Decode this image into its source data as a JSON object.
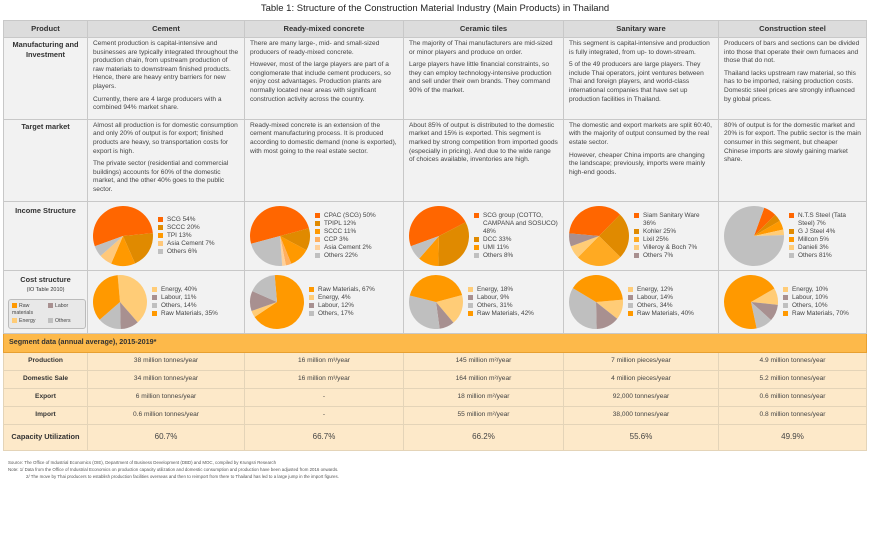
{
  "title": "Table 1: Structure of the Construction Material Industry (Main Products) in Thailand",
  "row_labels": {
    "product": "Product",
    "manufacturing": "Manufacturing and Investment",
    "target": "Target market",
    "income": "Income Structure",
    "cost": "Cost structure",
    "cost_sub": "(IO Table 2010)",
    "segment_header": "Segment data (annual average), 2015-2019*",
    "production": "Production",
    "domestic": "Domestic Sale",
    "export": "Export",
    "import": "Import",
    "capacity": "Capacity Utilization"
  },
  "legend": [
    {
      "label": "Raw materials",
      "color": "#ff9900"
    },
    {
      "label": "Labor",
      "color": "#a89090"
    },
    {
      "label": "Energy",
      "color": "#ffcc77"
    },
    {
      "label": "Others",
      "color": "#bfbfbf"
    }
  ],
  "products": [
    {
      "name": "Cement",
      "manufacturing": [
        "Cement production is capital-intensive and businesses are typically integrated throughout the production chain, from upstream production of raw materials to downstream finished products. Hence, there are heavy entry barriers for new players.",
        "Currently, there are 4 large producers with a combined 94% market share."
      ],
      "target": [
        "Almost all production is for domestic consumption and only 20% of output is for export; finished products are heavy, so transportation costs for export is high.",
        "The private sector (residential and commercial buildings) accounts for 60% of the domestic market, and the other 40% goes to the public sector."
      ],
      "income": [
        {
          "label": "SCG 54%",
          "value": 54,
          "color": "#ff6600"
        },
        {
          "label": "SCCC 20%",
          "value": 20,
          "color": "#e08a00"
        },
        {
          "label": "TPI 13%",
          "value": 13,
          "color": "#ff9900"
        },
        {
          "label": "Asia Cement 7%",
          "value": 7,
          "color": "#ffc87a"
        },
        {
          "label": "Others 6%",
          "value": 6,
          "color": "#c0c0c0"
        }
      ],
      "cost": [
        {
          "label": "Energy, 40%",
          "value": 40,
          "color": "#ffcc77"
        },
        {
          "label": "Labour, 11%",
          "value": 11,
          "color": "#a89090"
        },
        {
          "label": "Others, 14%",
          "value": 14,
          "color": "#bfbfbf"
        },
        {
          "label": "Raw Materials, 35%",
          "value": 35,
          "color": "#ff9900"
        }
      ],
      "production": "38 million tonnes/year",
      "domestic": "34 million tonnes/year",
      "export": "6 million tonnes/year",
      "import": "0.6 million tonnes/year",
      "capacity": "60.7%"
    },
    {
      "name": "Ready-mixed concrete",
      "manufacturing": [
        "There are many large-, mid- and small-sized producers of ready-mixed concrete.",
        "However, most of the large players are part of a conglomerate that include cement producers, so enjoy cost advantages. Production plants are normally located near areas with significant construction activity across the country."
      ],
      "target": [
        "Ready-mixed concrete is an extension of the cement manufacturing process. It is produced according to domestic demand (none is exported), with most going to the real estate sector."
      ],
      "income": [
        {
          "label": "CPAC (SCG) 50%",
          "value": 50,
          "color": "#ff6600"
        },
        {
          "label": "TPIPL 12%",
          "value": 12,
          "color": "#e08a00"
        },
        {
          "label": "SCCC 11%",
          "value": 11,
          "color": "#ff9900"
        },
        {
          "label": "CCP 3%",
          "value": 3,
          "color": "#ffb060"
        },
        {
          "label": "Asia Cement 2%",
          "value": 2,
          "color": "#ffd099"
        },
        {
          "label": "Others 22%",
          "value": 22,
          "color": "#c0c0c0"
        }
      ],
      "cost": [
        {
          "label": "Raw Materials, 67%",
          "value": 67,
          "color": "#ff9900"
        },
        {
          "label": "Energy, 4%",
          "value": 4,
          "color": "#ffcc77"
        },
        {
          "label": "Labour, 12%",
          "value": 12,
          "color": "#a89090"
        },
        {
          "label": "Others, 17%",
          "value": 17,
          "color": "#bfbfbf"
        }
      ],
      "production": "16 million m³/year",
      "domestic": "16 million m³/year",
      "export": "-",
      "import": "-",
      "capacity": "66.7%"
    },
    {
      "name": "Ceramic tiles",
      "manufacturing": [
        "The majority of Thai manufacturers are mid-sized or minor players and produce on order.",
        "Large players have little financial constraints, so they can employ technology-intensive production and sell under their own brands. They command 90% of the market."
      ],
      "target": [
        "About 85% of output is distributed to the domestic market and 15% is exported. This segment is marked by strong competition from imported goods (especially in pricing). And due to the wide range of choices available, inventories are high."
      ],
      "income": [
        {
          "label": "SCG group (COTTO, CAMPANA and SOSUCO) 48%",
          "value": 48,
          "color": "#ff6600"
        },
        {
          "label": "DCC 33%",
          "value": 33,
          "color": "#e08a00"
        },
        {
          "label": "UMI 11%",
          "value": 11,
          "color": "#ff9900"
        },
        {
          "label": "Others 8%",
          "value": 8,
          "color": "#c0c0c0"
        }
      ],
      "cost": [
        {
          "label": "Energy, 18%",
          "value": 18,
          "color": "#ffcc77"
        },
        {
          "label": "Labour, 9%",
          "value": 9,
          "color": "#a89090"
        },
        {
          "label": "Others, 31%",
          "value": 31,
          "color": "#bfbfbf"
        },
        {
          "label": "Raw Materials, 42%",
          "value": 42,
          "color": "#ff9900"
        }
      ],
      "production": "145 million m²/year",
      "domestic": "164 million m²/year",
      "export": "18 million m²/year",
      "import": "55 million m²/year",
      "capacity": "66.2%"
    },
    {
      "name": "Sanitary ware",
      "manufacturing": [
        "This segment is capital-intensive and production is fully integrated, from up- to down-stream.",
        "5 of the 49 producers are large players. They include Thai operators, joint ventures between Thai and foreign players, and world-class international companies that have set up production facilities in Thailand."
      ],
      "target": [
        "The domestic and export markets are split 60:40, with the majority of output consumed by the real estate sector.",
        "However, cheaper China imports are changing the landscape; previously, imports were mainly high-end goods."
      ],
      "income": [
        {
          "label": "Siam Sanitary Ware 36%",
          "value": 36,
          "color": "#ff6600"
        },
        {
          "label": "Kohler 25%",
          "value": 25,
          "color": "#e08a00"
        },
        {
          "label": "Lixil 25%",
          "value": 25,
          "color": "#ffaa22"
        },
        {
          "label": "Villeroy & Boch 7%",
          "value": 7,
          "color": "#ffcc77"
        },
        {
          "label": "Others 7%",
          "value": 7,
          "color": "#a89090"
        }
      ],
      "cost": [
        {
          "label": "Energy, 12%",
          "value": 12,
          "color": "#ffcc77"
        },
        {
          "label": "Labour, 14%",
          "value": 14,
          "color": "#a89090"
        },
        {
          "label": "Others, 34%",
          "value": 34,
          "color": "#bfbfbf"
        },
        {
          "label": "Raw Materials, 40%",
          "value": 40,
          "color": "#ff9900"
        }
      ],
      "production": "7 million pieces/year",
      "domestic": "4 million pieces/year",
      "export": "92,000 tonnes/year",
      "import": "38,000 tonnes/year",
      "capacity": "55.6%"
    },
    {
      "name": "Construction steel",
      "manufacturing": [
        "Producers of bars and sections can be divided into those that operate their own furnaces and those that do not.",
        "Thailand lacks upstream raw material, so this has to be imported, raising production costs. Domestic steel prices are strongly influenced by global prices."
      ],
      "target": [
        "80% of output is for the domestic market and 20% is for export. The public sector is the main consumer in this segment, but cheaper Chinese imports are slowly gaining market share."
      ],
      "income": [
        {
          "label": "N.T.S Steel (Tata Steel) 7%",
          "value": 7,
          "color": "#ff6600"
        },
        {
          "label": "G J Steel 4%",
          "value": 4,
          "color": "#e08a00"
        },
        {
          "label": "Millcon 5%",
          "value": 5,
          "color": "#ff9900"
        },
        {
          "label": "Danieli 3%",
          "value": 3,
          "color": "#ffcc77"
        },
        {
          "label": "Others 81%",
          "value": 81,
          "color": "#c0c0c0"
        }
      ],
      "cost": [
        {
          "label": "Energy, 10%",
          "value": 10,
          "color": "#ffcc77"
        },
        {
          "label": "Labour, 10%",
          "value": 10,
          "color": "#a89090"
        },
        {
          "label": "Others, 10%",
          "value": 10,
          "color": "#bfbfbf"
        },
        {
          "label": "Raw Materials, 70%",
          "value": 70,
          "color": "#ff9900"
        }
      ],
      "production": "4.9 million tonnes/year",
      "domestic": "5.2 million tonnes/year",
      "export": "0.6 million tonnes/year",
      "import": "0.8 million tonnes/year",
      "capacity": "49.9%"
    }
  ],
  "footer": [
    "Source: The Office of Industrial Economics (OIE), Department of Business Development (DBD) and MOC, compiled by Krungsri Research",
    "Note: 1/ Data from the Office of Industrial Economics on production capacity utilization and domestic consumption and production have been adjusted from 2016 onwards.",
    "2/ The move by Thai producers to establish production facilities overseas and then to reimport from there to Thailand has led to a large jump in the import figures."
  ]
}
